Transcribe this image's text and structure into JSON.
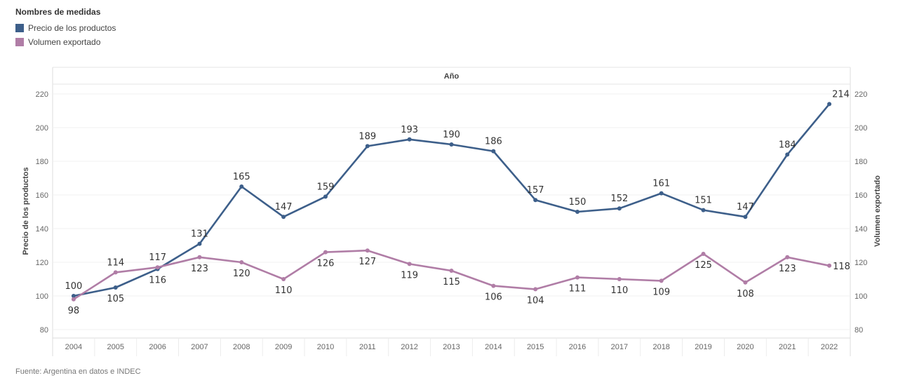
{
  "legend": {
    "title": "Nombres de medidas",
    "items": [
      {
        "label": "Precio de los productos",
        "color": "#3d5f8a"
      },
      {
        "label": "Volumen exportado",
        "color": "#b07da6"
      }
    ]
  },
  "source": "Fuente: Argentina en datos e INDEC",
  "chart_data": {
    "type": "line",
    "top_label": "Año",
    "ylabel_left": "Precio de los productos",
    "ylabel_right": "Volumen exportado",
    "ylim": [
      75,
      225
    ],
    "yticks": [
      80,
      100,
      120,
      140,
      160,
      180,
      200,
      220
    ],
    "categories": [
      "2004",
      "2005",
      "2006",
      "2007",
      "2008",
      "2009",
      "2010",
      "2011",
      "2012",
      "2013",
      "2014",
      "2015",
      "2016",
      "2017",
      "2018",
      "2019",
      "2020",
      "2021",
      "2022"
    ],
    "series": [
      {
        "name": "Precio de los productos",
        "color": "#3d5f8a",
        "values": [
          100,
          105,
          116,
          131,
          165,
          147,
          159,
          189,
          193,
          190,
          186,
          157,
          150,
          152,
          161,
          151,
          147,
          184,
          214
        ]
      },
      {
        "name": "Volumen exportado",
        "color": "#b07da6",
        "values": [
          98,
          114,
          117,
          123,
          120,
          110,
          126,
          127,
          119,
          115,
          106,
          104,
          111,
          110,
          109,
          125,
          108,
          123,
          118
        ]
      }
    ]
  }
}
